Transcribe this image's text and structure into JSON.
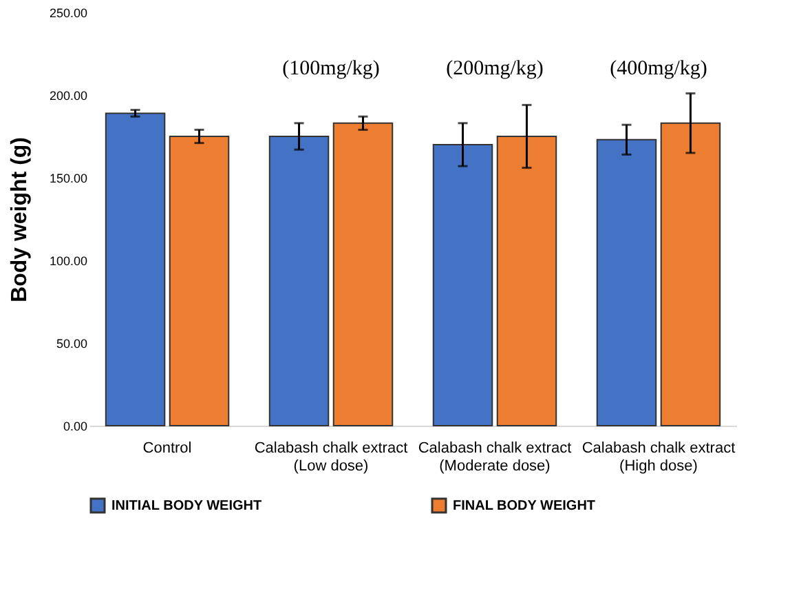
{
  "chart_data": {
    "type": "bar",
    "ylabel": "Body weight (g)",
    "categories": [
      "Control",
      "Calabash chalk extract\n(Low dose)",
      "Calabash chalk extract\n(Moderate dose)",
      "Calabash chalk extract\n(High dose)"
    ],
    "series": [
      {
        "name": "INITIAL BODY WEIGHT",
        "color": "#4472c4",
        "values": [
          189,
          175,
          170,
          173
        ],
        "errors": [
          2,
          8,
          13,
          9
        ]
      },
      {
        "name": "FINAL BODY WEIGHT",
        "color": "#ed7d31",
        "values": [
          175,
          183,
          175,
          183
        ],
        "errors": [
          4,
          4,
          19,
          18
        ]
      }
    ],
    "ylim": [
      0,
      250
    ],
    "yticks": [
      {
        "value": 0,
        "label": "0.00"
      },
      {
        "value": 50,
        "label": "50.00"
      },
      {
        "value": 100,
        "label": "100.00"
      },
      {
        "value": 150,
        "label": "150.00"
      },
      {
        "value": 200,
        "label": "200.00"
      },
      {
        "value": 250,
        "label": "250.00"
      }
    ],
    "annotations": [
      "(100mg/kg)",
      "(200mg/kg)",
      "(400mg/kg)"
    ],
    "grid": false,
    "legend": "bottom"
  }
}
